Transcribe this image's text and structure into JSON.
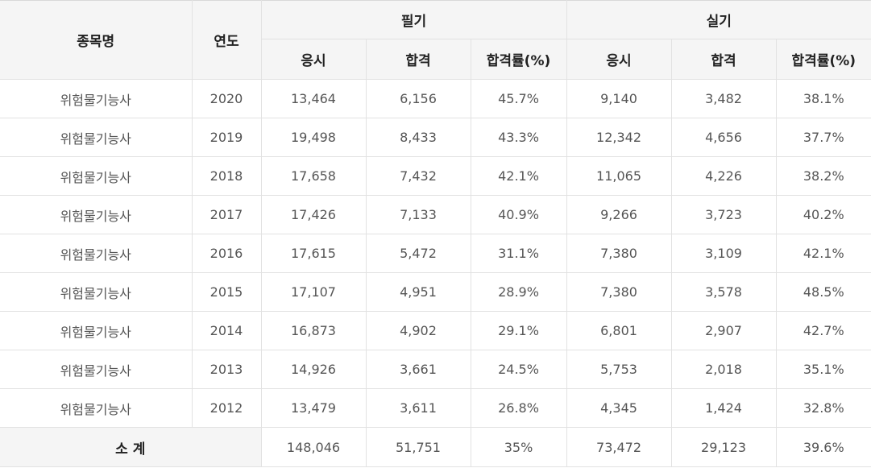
{
  "header": {
    "name_col": "종목명",
    "year_col": "연도",
    "written_group": "필기",
    "practical_group": "실기",
    "written_sub": [
      "응시",
      "합격",
      "합격률(%)"
    ],
    "practical_sub": [
      "응시",
      "합격",
      "합격률(%)"
    ]
  },
  "rows": [
    {
      "name": "위험물기능사",
      "year": "2020",
      "w_apply": "13,464",
      "w_pass": "6,156",
      "w_rate": "45.7%",
      "p_apply": "9,140",
      "p_pass": "3,482",
      "p_rate": "38.1%"
    },
    {
      "name": "위험물기능사",
      "year": "2019",
      "w_apply": "19,498",
      "w_pass": "8,433",
      "w_rate": "43.3%",
      "p_apply": "12,342",
      "p_pass": "4,656",
      "p_rate": "37.7%"
    },
    {
      "name": "위험물기능사",
      "year": "2018",
      "w_apply": "17,658",
      "w_pass": "7,432",
      "w_rate": "42.1%",
      "p_apply": "11,065",
      "p_pass": "4,226",
      "p_rate": "38.2%"
    },
    {
      "name": "위험물기능사",
      "year": "2017",
      "w_apply": "17,426",
      "w_pass": "7,133",
      "w_rate": "40.9%",
      "p_apply": "9,266",
      "p_pass": "3,723",
      "p_rate": "40.2%"
    },
    {
      "name": "위험물기능사",
      "year": "2016",
      "w_apply": "17,615",
      "w_pass": "5,472",
      "w_rate": "31.1%",
      "p_apply": "7,380",
      "p_pass": "3,109",
      "p_rate": "42.1%"
    },
    {
      "name": "위험물기능사",
      "year": "2015",
      "w_apply": "17,107",
      "w_pass": "4,951",
      "w_rate": "28.9%",
      "p_apply": "7,380",
      "p_pass": "3,578",
      "p_rate": "48.5%"
    },
    {
      "name": "위험물기능사",
      "year": "2014",
      "w_apply": "16,873",
      "w_pass": "4,902",
      "w_rate": "29.1%",
      "p_apply": "6,801",
      "p_pass": "2,907",
      "p_rate": "42.7%"
    },
    {
      "name": "위험물기능사",
      "year": "2013",
      "w_apply": "14,926",
      "w_pass": "3,661",
      "w_rate": "24.5%",
      "p_apply": "5,753",
      "p_pass": "2,018",
      "p_rate": "35.1%"
    },
    {
      "name": "위험물기능사",
      "year": "2012",
      "w_apply": "13,479",
      "w_pass": "3,611",
      "w_rate": "26.8%",
      "p_apply": "4,345",
      "p_pass": "1,424",
      "p_rate": "32.8%"
    }
  ],
  "total": {
    "label": "소 계",
    "w_apply": "148,046",
    "w_pass": "51,751",
    "w_rate": "35%",
    "p_apply": "73,472",
    "p_pass": "29,123",
    "p_rate": "39.6%"
  }
}
